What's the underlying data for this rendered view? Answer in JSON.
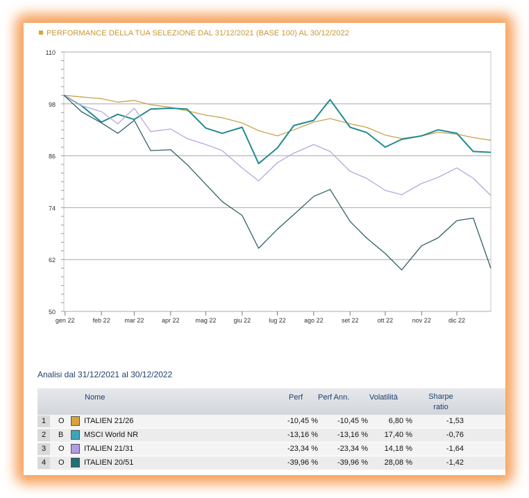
{
  "header": {
    "title": "PERFORMANCE DELLA TUA SELEZIONE DAL 31/12/2021 (BASE 100) AL 30/12/2022"
  },
  "colors": {
    "italien_21_26": "#c9a24a",
    "msci_world": "#1f8a8f",
    "italien_21_31": "#b7a6dd",
    "italien_20_51": "#2f5f63",
    "title_accent": "#d9a33a"
  },
  "chart_data": {
    "type": "line",
    "ylim": [
      50,
      110
    ],
    "yticks": [
      50,
      62,
      74,
      86,
      98,
      110
    ],
    "ytick_labels": [
      "50",
      "62",
      "74",
      "86",
      "98",
      "110"
    ],
    "x_labels": [
      "gen 22",
      "feb 22",
      "mar 22",
      "apr 22",
      "mag 22",
      "giu 22",
      "lug 22",
      "ago 22",
      "set 22",
      "ott 22",
      "nov 22",
      "dic 22"
    ],
    "x_range": [
      "2021-12-31",
      "2022-12-30"
    ],
    "series": [
      {
        "name": "ITALIEN 21/26",
        "color": "#c9a24a",
        "x": [
          "2021-12-31",
          "2022-01-15",
          "2022-02-01",
          "2022-02-15",
          "2022-03-01",
          "2022-03-15",
          "2022-04-01",
          "2022-04-15",
          "2022-05-01",
          "2022-05-15",
          "2022-06-01",
          "2022-06-15",
          "2022-07-01",
          "2022-07-15",
          "2022-08-01",
          "2022-08-15",
          "2022-09-01",
          "2022-09-15",
          "2022-10-01",
          "2022-10-15",
          "2022-11-01",
          "2022-11-15",
          "2022-12-01",
          "2022-12-15",
          "2022-12-30"
        ],
        "y": [
          100,
          99.6,
          99.2,
          98.4,
          98.8,
          97.8,
          97.2,
          96.4,
          95.4,
          94.8,
          93.6,
          91.8,
          90.6,
          92.0,
          93.8,
          94.6,
          93.4,
          92.6,
          90.8,
          90.0,
          90.6,
          91.4,
          91.0,
          90.2,
          89.6
        ]
      },
      {
        "name": "MSCI World NR",
        "color": "#1f8a8f",
        "x": [
          "2021-12-31",
          "2022-01-15",
          "2022-02-01",
          "2022-02-15",
          "2022-03-01",
          "2022-03-15",
          "2022-04-01",
          "2022-04-15",
          "2022-05-01",
          "2022-05-15",
          "2022-06-01",
          "2022-06-15",
          "2022-07-01",
          "2022-07-15",
          "2022-08-01",
          "2022-08-15",
          "2022-09-01",
          "2022-09-15",
          "2022-10-01",
          "2022-10-15",
          "2022-11-01",
          "2022-11-15",
          "2022-12-01",
          "2022-12-15",
          "2022-12-30"
        ],
        "y": [
          100,
          97.6,
          93.8,
          95.6,
          94.4,
          96.8,
          97.0,
          96.8,
          92.4,
          91.2,
          92.6,
          84.2,
          87.8,
          93.0,
          94.2,
          99.0,
          92.6,
          91.4,
          88.0,
          89.8,
          90.6,
          92.0,
          91.2,
          87.0,
          86.8
        ]
      },
      {
        "name": "ITALIEN 21/31",
        "color": "#b7a6dd",
        "x": [
          "2021-12-31",
          "2022-01-15",
          "2022-02-01",
          "2022-02-15",
          "2022-03-01",
          "2022-03-15",
          "2022-04-01",
          "2022-04-15",
          "2022-05-01",
          "2022-05-15",
          "2022-06-01",
          "2022-06-15",
          "2022-07-01",
          "2022-07-15",
          "2022-08-01",
          "2022-08-15",
          "2022-09-01",
          "2022-09-15",
          "2022-10-01",
          "2022-10-15",
          "2022-11-01",
          "2022-11-15",
          "2022-12-01",
          "2022-12-15",
          "2022-12-30"
        ],
        "y": [
          100,
          97.6,
          96.2,
          93.4,
          97.0,
          91.6,
          92.2,
          90.0,
          88.6,
          87.2,
          83.2,
          80.2,
          84.4,
          86.6,
          88.6,
          87.0,
          82.4,
          80.8,
          78.0,
          77.0,
          79.6,
          81.0,
          83.2,
          80.8,
          76.8
        ]
      },
      {
        "name": "ITALIEN 20/51",
        "color": "#2f5f63",
        "x": [
          "2021-12-31",
          "2022-01-15",
          "2022-02-01",
          "2022-02-15",
          "2022-03-01",
          "2022-03-15",
          "2022-04-01",
          "2022-04-15",
          "2022-05-01",
          "2022-05-15",
          "2022-06-01",
          "2022-06-15",
          "2022-07-01",
          "2022-07-15",
          "2022-08-01",
          "2022-08-15",
          "2022-09-01",
          "2022-09-15",
          "2022-10-01",
          "2022-10-15",
          "2022-11-01",
          "2022-11-15",
          "2022-12-01",
          "2022-12-15",
          "2022-12-30"
        ],
        "y": [
          100,
          96.2,
          93.6,
          91.2,
          94.2,
          87.2,
          87.4,
          84.0,
          79.4,
          75.4,
          72.2,
          64.6,
          69.0,
          72.4,
          76.6,
          78.2,
          70.8,
          67.0,
          63.4,
          59.6,
          65.2,
          67.0,
          71.0,
          71.6,
          60.0
        ]
      }
    ]
  },
  "analysis": {
    "title": "Analisi dal 31/12/2021 al 30/12/2022",
    "columns": {
      "name": "Nome",
      "perf": "Perf",
      "perf_ann": "Perf Ann.",
      "volatility": "Volatilità",
      "sharpe": "Sharpe ratio"
    },
    "rows": [
      {
        "num": "1",
        "type": "O",
        "name": "ITALIEN 21/26",
        "color": "#d9a33a",
        "perf": "-10,45 %",
        "perf_ann": "-10,45 %",
        "volatility": "6,80 %",
        "sharpe": "-1,53"
      },
      {
        "num": "2",
        "type": "B",
        "name": "MSCI World NR",
        "color": "#3aa6b8",
        "perf": "-13,16 %",
        "perf_ann": "-13,16 %",
        "volatility": "17,40 %",
        "sharpe": "-0,76"
      },
      {
        "num": "3",
        "type": "O",
        "name": "ITALIEN 21/31",
        "color": "#b39ce4",
        "perf": "-23,34 %",
        "perf_ann": "-23,34 %",
        "volatility": "14,18 %",
        "sharpe": "-1,64"
      },
      {
        "num": "4",
        "type": "O",
        "name": "ITALIEN 20/51",
        "color": "#1f6f75",
        "perf": "-39,96 %",
        "perf_ann": "-39,96 %",
        "volatility": "28,08 %",
        "sharpe": "-1,42"
      }
    ]
  }
}
